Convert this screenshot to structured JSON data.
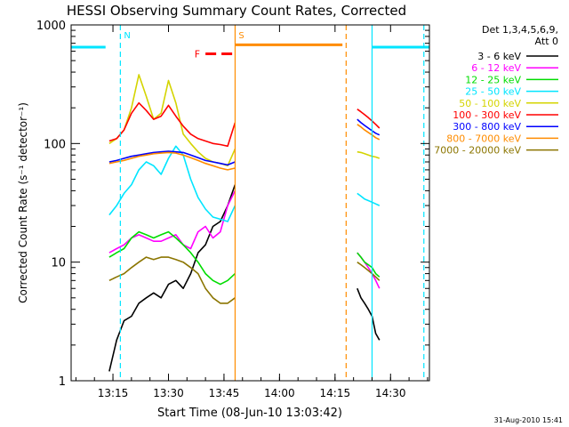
{
  "chart_data": {
    "type": "line",
    "title": "HESSI Observing Summary Count Rates, Corrected",
    "xlabel": "Start Time (08-Jun-10 13:03:42)",
    "ylabel": "Corrected Count Rate (s⁻¹ detector⁻¹)",
    "yscale": "log",
    "ylim": [
      1,
      1000
    ],
    "xlim": [
      "13:03:42",
      "14:40:30"
    ],
    "x_ticks": [
      "13:15",
      "13:30",
      "13:45",
      "14:00",
      "14:15",
      "14:30"
    ],
    "y_ticks": [
      "1",
      "10",
      "100",
      "1000"
    ],
    "grid": false,
    "legend": {
      "placement": "outside-right",
      "header": [
        "Det 1,3,4,5,6,9,",
        "Att 0"
      ]
    },
    "markers": [
      {
        "label": "N",
        "time": "13:17",
        "color": "#00e5ff",
        "style": "dashed"
      },
      {
        "label": "S",
        "time": "13:48",
        "color": "#ff8c00",
        "style": "solid"
      },
      {
        "label": "",
        "time": "14:18",
        "color": "#ff8c00",
        "style": "dashed"
      },
      {
        "label": "",
        "time": "14:25",
        "color": "#00e5ff",
        "style": "solid"
      },
      {
        "label": "",
        "time": "14:39",
        "color": "#00e5ff",
        "style": "dashed"
      }
    ],
    "bars": [
      {
        "label": "",
        "start": "13:03:42",
        "end": "13:13",
        "value": 650,
        "color": "#00e5ff"
      },
      {
        "label": "S",
        "start": "13:48",
        "end": "14:17",
        "value": 680,
        "color": "#ff8c00"
      },
      {
        "label": "F",
        "start": "13:40",
        "end": "13:48",
        "value": 570,
        "color": "#ff0000",
        "dash": true
      },
      {
        "label": "",
        "start": "14:25",
        "end": "14:40:30",
        "value": 650,
        "color": "#00e5ff"
      }
    ],
    "series": [
      {
        "name": "3 - 6 keV",
        "color": "#000000",
        "segments": [
          {
            "x": [
              "13:14",
              "13:16",
              "13:18",
              "13:20",
              "13:22",
              "13:24",
              "13:26",
              "13:28",
              "13:30",
              "13:32",
              "13:34",
              "13:36",
              "13:38",
              "13:40",
              "13:42",
              "13:44",
              "13:46",
              "13:48"
            ],
            "y": [
              1.2,
              2.2,
              3.2,
              3.5,
              4.5,
              5.0,
              5.5,
              5.0,
              6.5,
              7.0,
              6.0,
              8.0,
              12,
              14,
              20,
              22,
              30,
              45
            ]
          },
          {
            "x": [
              "14:21",
              "14:22",
              "14:23",
              "14:24",
              "14:25",
              "14:26",
              "14:27"
            ],
            "y": [
              6,
              5,
              4.5,
              4,
              3.5,
              2.5,
              2.2
            ]
          }
        ]
      },
      {
        "name": "6 - 12 keV",
        "color": "#ff00ff",
        "segments": [
          {
            "x": [
              "13:14",
              "13:16",
              "13:18",
              "13:20",
              "13:22",
              "13:24",
              "13:26",
              "13:28",
              "13:30",
              "13:32",
              "13:34",
              "13:36",
              "13:38",
              "13:40",
              "13:42",
              "13:44",
              "13:46",
              "13:48"
            ],
            "y": [
              12,
              13,
              14,
              16,
              17,
              16,
              15,
              15,
              16,
              17,
              14,
              13,
              18,
              20,
              16,
              18,
              30,
              40
            ]
          },
          {
            "x": [
              "14:21",
              "14:22",
              "14:23",
              "14:24",
              "14:25",
              "14:26",
              "14:27"
            ],
            "y": [
              12,
              11,
              10,
              9,
              8,
              7,
              6
            ]
          }
        ]
      },
      {
        "name": "12 - 25 keV",
        "color": "#00dd00",
        "segments": [
          {
            "x": [
              "13:14",
              "13:16",
              "13:18",
              "13:20",
              "13:22",
              "13:24",
              "13:26",
              "13:28",
              "13:30",
              "13:32",
              "13:34",
              "13:36",
              "13:38",
              "13:40",
              "13:42",
              "13:44",
              "13:46",
              "13:48"
            ],
            "y": [
              11,
              12,
              13,
              16,
              18,
              17,
              16,
              17,
              18,
              16,
              14,
              12,
              10,
              8,
              7,
              6.5,
              7,
              8
            ]
          },
          {
            "x": [
              "14:21",
              "14:22",
              "14:23",
              "14:24",
              "14:25",
              "14:26",
              "14:27"
            ],
            "y": [
              12,
              11,
              10,
              9.5,
              9,
              8,
              7.5
            ]
          }
        ]
      },
      {
        "name": "25 - 50 keV",
        "color": "#00e5ff",
        "segments": [
          {
            "x": [
              "13:14",
              "13:16",
              "13:18",
              "13:20",
              "13:22",
              "13:24",
              "13:26",
              "13:28",
              "13:30",
              "13:32",
              "13:34",
              "13:36",
              "13:38",
              "13:40",
              "13:42",
              "13:44",
              "13:46",
              "13:48"
            ],
            "y": [
              25,
              30,
              38,
              45,
              60,
              70,
              65,
              55,
              75,
              95,
              80,
              50,
              35,
              28,
              24,
              23,
              22,
              30
            ]
          },
          {
            "x": [
              "14:21",
              "14:22",
              "14:23",
              "14:24",
              "14:25",
              "14:26",
              "14:27"
            ],
            "y": [
              38,
              36,
              34,
              33,
              32,
              31,
              30
            ]
          }
        ]
      },
      {
        "name": "50 - 100 keV",
        "color": "#d4d400",
        "segments": [
          {
            "x": [
              "13:14",
              "13:16",
              "13:18",
              "13:20",
              "13:22",
              "13:24",
              "13:26",
              "13:28",
              "13:30",
              "13:32",
              "13:34",
              "13:36",
              "13:38",
              "13:40",
              "13:42",
              "13:44",
              "13:46",
              "13:48"
            ],
            "y": [
              100,
              110,
              130,
              200,
              380,
              250,
              160,
              180,
              340,
              220,
              120,
              100,
              85,
              75,
              70,
              68,
              65,
              90
            ]
          },
          {
            "x": [
              "14:21",
              "14:22",
              "14:23",
              "14:24",
              "14:25",
              "14:26",
              "14:27"
            ],
            "y": [
              85,
              84,
              82,
              80,
              78,
              77,
              75
            ]
          }
        ]
      },
      {
        "name": "100 - 300 keV",
        "color": "#ff0000",
        "segments": [
          {
            "x": [
              "13:14",
              "13:16",
              "13:18",
              "13:20",
              "13:22",
              "13:24",
              "13:26",
              "13:28",
              "13:30",
              "13:32",
              "13:34",
              "13:36",
              "13:38",
              "13:40",
              "13:42",
              "13:44",
              "13:46",
              "13:48"
            ],
            "y": [
              105,
              110,
              130,
              180,
              220,
              190,
              160,
              170,
              210,
              170,
              140,
              120,
              110,
              105,
              100,
              98,
              95,
              150
            ]
          },
          {
            "x": [
              "14:21",
              "14:22",
              "14:23",
              "14:24",
              "14:25",
              "14:26",
              "14:27"
            ],
            "y": [
              195,
              185,
              175,
              165,
              155,
              145,
              135
            ]
          }
        ]
      },
      {
        "name": "300 - 800 keV",
        "color": "#0000ff",
        "segments": [
          {
            "x": [
              "13:14",
              "13:16",
              "13:18",
              "13:20",
              "13:22",
              "13:24",
              "13:26",
              "13:28",
              "13:30",
              "13:32",
              "13:34",
              "13:36",
              "13:38",
              "13:40",
              "13:42",
              "13:44",
              "13:46",
              "13:48"
            ],
            "y": [
              70,
              72,
              75,
              78,
              80,
              82,
              84,
              85,
              86,
              85,
              84,
              80,
              76,
              72,
              70,
              68,
              66,
              70
            ]
          },
          {
            "x": [
              "14:21",
              "14:22",
              "14:23",
              "14:24",
              "14:25",
              "14:26",
              "14:27"
            ],
            "y": [
              160,
              150,
              142,
              135,
              128,
              122,
              118
            ]
          }
        ]
      },
      {
        "name": "800 - 7000 keV",
        "color": "#ff8c00",
        "segments": [
          {
            "x": [
              "13:14",
              "13:16",
              "13:18",
              "13:20",
              "13:22",
              "13:24",
              "13:26",
              "13:28",
              "13:30",
              "13:32",
              "13:34",
              "13:36",
              "13:38",
              "13:40",
              "13:42",
              "13:44",
              "13:46",
              "13:48"
            ],
            "y": [
              68,
              70,
              72,
              75,
              78,
              80,
              82,
              83,
              84,
              83,
              80,
              76,
              72,
              68,
              65,
              62,
              60,
              62
            ]
          },
          {
            "x": [
              "14:21",
              "14:22",
              "14:23",
              "14:24",
              "14:25",
              "14:26",
              "14:27"
            ],
            "y": [
              145,
              138,
              130,
              124,
              118,
              112,
              108
            ]
          }
        ]
      },
      {
        "name": "7000 - 20000 keV",
        "color": "#8b7500",
        "segments": [
          {
            "x": [
              "13:14",
              "13:16",
              "13:18",
              "13:20",
              "13:22",
              "13:24",
              "13:26",
              "13:28",
              "13:30",
              "13:32",
              "13:34",
              "13:36",
              "13:38",
              "13:40",
              "13:42",
              "13:44",
              "13:46",
              "13:48"
            ],
            "y": [
              7,
              7.5,
              8,
              9,
              10,
              11,
              10.5,
              11,
              11,
              10.5,
              10,
              9,
              8,
              6,
              5,
              4.5,
              4.5,
              5
            ]
          },
          {
            "x": [
              "14:21",
              "14:22",
              "14:23",
              "14:24",
              "14:25",
              "14:26",
              "14:27"
            ],
            "y": [
              10,
              9.5,
              9,
              8.5,
              8,
              7.5,
              7
            ]
          }
        ]
      }
    ]
  },
  "footer": {
    "timestamp": "31-Aug-2010 15:41"
  }
}
